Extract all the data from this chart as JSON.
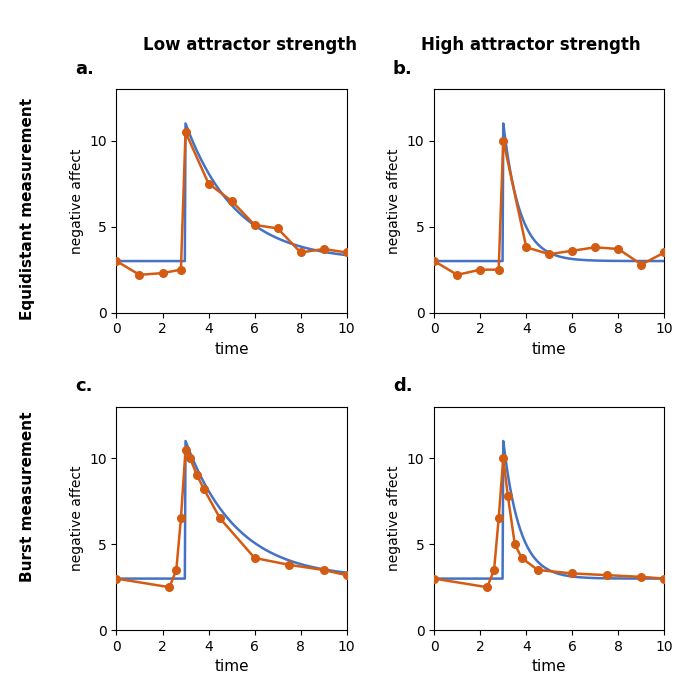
{
  "title_left": "Low attractor strength",
  "title_right": "High attractor strength",
  "row_label_top": "Equidistant measurement",
  "row_label_bottom": "Burst measurement",
  "panel_labels": [
    "a.",
    "b.",
    "c.",
    "d."
  ],
  "ylabel": "negative affect",
  "xlabel": "time",
  "xlim": [
    0,
    10
  ],
  "ylim": [
    0,
    13
  ],
  "yticks": [
    0,
    5,
    10
  ],
  "xticks": [
    0,
    2,
    4,
    6,
    8,
    10
  ],
  "signal_color": "#4472C4",
  "measured_color": "#D45B12",
  "line_width": 1.8,
  "marker": "o",
  "marker_size": 5.5,
  "panels": {
    "a": {
      "signal_decay": 0.45,
      "signal_peak": 11,
      "signal_baseline": 3,
      "signal_onset": 3,
      "measured_x": [
        0,
        1,
        2,
        2.8,
        3,
        4,
        5,
        6,
        7,
        8,
        9,
        10
      ],
      "measured_y": [
        3.0,
        2.2,
        2.3,
        2.5,
        10.5,
        7.5,
        6.5,
        5.1,
        4.9,
        3.5,
        3.7,
        3.5
      ]
    },
    "b": {
      "signal_decay": 1.4,
      "signal_peak": 11,
      "signal_baseline": 3,
      "signal_onset": 3,
      "measured_x": [
        0,
        1,
        2,
        2.8,
        3,
        4,
        5,
        6,
        7,
        8,
        9,
        10
      ],
      "measured_y": [
        3.0,
        2.2,
        2.5,
        2.5,
        10.0,
        3.8,
        3.4,
        3.6,
        3.8,
        3.7,
        2.8,
        3.5
      ]
    },
    "c": {
      "signal_decay": 0.45,
      "signal_peak": 11,
      "signal_baseline": 3,
      "signal_onset": 3,
      "measured_x": [
        0,
        2.3,
        2.6,
        2.8,
        3.0,
        3.2,
        3.5,
        3.8,
        4.5,
        6,
        7.5,
        9,
        10
      ],
      "measured_y": [
        3.0,
        2.5,
        3.5,
        6.5,
        10.5,
        10.0,
        9.0,
        8.2,
        6.5,
        4.2,
        3.8,
        3.5,
        3.2
      ]
    },
    "d": {
      "signal_decay": 1.4,
      "signal_peak": 11,
      "signal_baseline": 3,
      "signal_onset": 3,
      "measured_x": [
        0,
        2.3,
        2.6,
        2.8,
        3.0,
        3.2,
        3.5,
        3.8,
        4.5,
        6,
        7.5,
        9,
        10
      ],
      "measured_y": [
        3.0,
        2.5,
        3.5,
        6.5,
        10.0,
        7.8,
        5.0,
        4.2,
        3.5,
        3.3,
        3.2,
        3.1,
        3.0
      ]
    }
  }
}
